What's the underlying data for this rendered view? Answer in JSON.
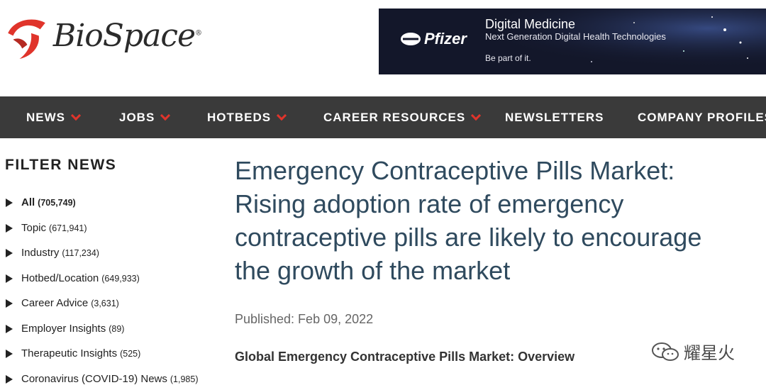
{
  "brand": {
    "name": "BioSpace",
    "registered": "®",
    "logo_color": "#e0342b"
  },
  "ad": {
    "sponsor": "Pfizer",
    "title": "Digital Medicine",
    "subtitle": "Next Generation Digital Health Technologies",
    "cta": "Be part of it."
  },
  "nav": {
    "accent": "#e0342b",
    "items": [
      {
        "label": "NEWS",
        "dropdown": true
      },
      {
        "label": "JOBS",
        "dropdown": true
      },
      {
        "label": "HOTBEDS",
        "dropdown": true
      },
      {
        "label": "CAREER RESOURCES",
        "dropdown": true
      },
      {
        "label": "NEWSLETTERS",
        "dropdown": false
      },
      {
        "label": "COMPANY PROFILES",
        "dropdown": false
      }
    ]
  },
  "sidebar": {
    "title": "FILTER NEWS",
    "items": [
      {
        "label": "All",
        "count": "(705,749)"
      },
      {
        "label": "Topic",
        "count": "(671,941)"
      },
      {
        "label": "Industry",
        "count": "(117,234)"
      },
      {
        "label": "Hotbed/Location",
        "count": "(649,933)"
      },
      {
        "label": "Career Advice",
        "count": "(3,631)"
      },
      {
        "label": "Employer Insights",
        "count": "(89)"
      },
      {
        "label": "Therapeutic Insights",
        "count": "(525)"
      },
      {
        "label": "Coronavirus (COVID-19) News",
        "count": "(1,985)"
      }
    ]
  },
  "article": {
    "headline": "Emergency Contraceptive Pills Market: Rising adoption rate of emergency contraceptive pills are likely to encourage the growth of the market",
    "published": "Published: Feb 09, 2022",
    "section_heading": "Global Emergency Contraceptive Pills Market: Overview",
    "headline_color": "#2f4a5e"
  },
  "watermark": {
    "text": "耀星火"
  }
}
